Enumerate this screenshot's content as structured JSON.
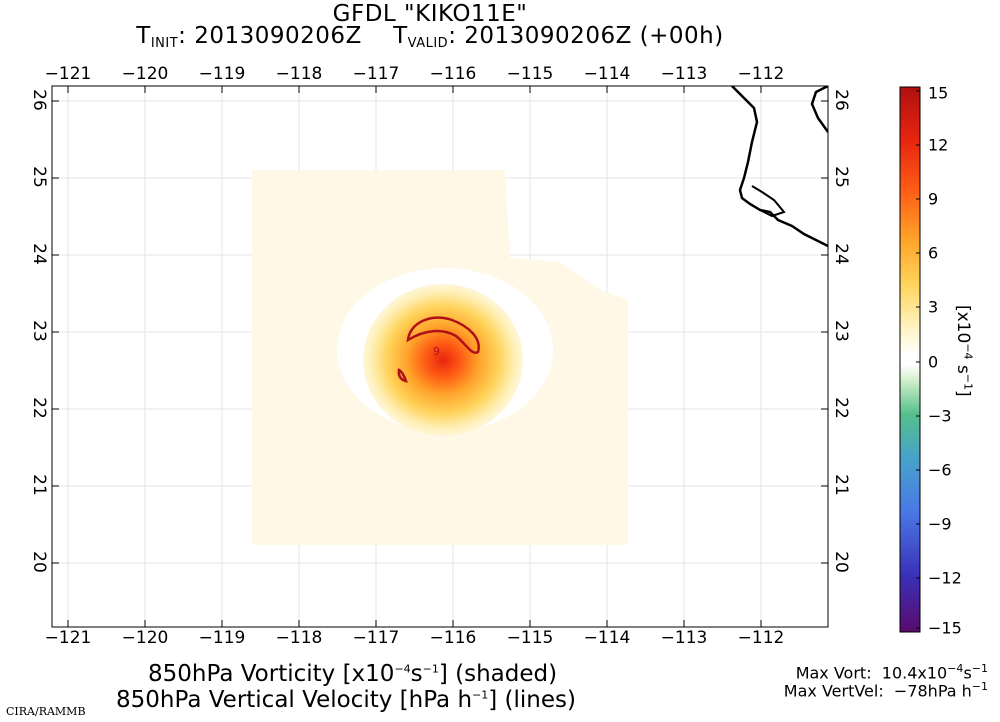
{
  "title": {
    "line1": "GFDL \"KIKO11E\"",
    "tinit_label": "T",
    "tinit_sub": "INIT",
    "tinit_value": ": 2013090206Z",
    "tvalid_label": "T",
    "tvalid_sub": "VALID",
    "tvalid_value": ": 2013090206Z (+00h)"
  },
  "map": {
    "lon_labels": [
      "−121",
      "−120",
      "−119",
      "−118",
      "−117",
      "−116",
      "−115",
      "−114",
      "−113",
      "−112"
    ],
    "lat_labels": [
      "26",
      "25",
      "24",
      "23",
      "22",
      "21",
      "20"
    ],
    "contour_label": "9",
    "colors": {
      "coast": "#000000",
      "contour": "#b0101a",
      "grid": "#e6e6e6"
    }
  },
  "colorbar": {
    "ticks": [
      "15",
      "12",
      "9",
      "6",
      "3",
      "0",
      "−3",
      "−6",
      "−9",
      "−12",
      "−15"
    ],
    "unit_prefix": "[x10",
    "unit_exp1": "−4",
    "unit_mid": " s",
    "unit_exp2": "−1",
    "unit_suffix": "]",
    "colors": [
      "#5b0a6e",
      "#3a2fb5",
      "#4a78e6",
      "#47a3c9",
      "#55c08c",
      "#bde6b7",
      "#ffffff",
      "#ffffff",
      "#fff6c7",
      "#ffd35a",
      "#ffa32a",
      "#ff6418",
      "#e8260f",
      "#b0100f"
    ]
  },
  "bottom": {
    "line1_a": "850hPa Vorticity [x10",
    "line1_exp1": "−4",
    "line1_b": "s",
    "line1_exp2": "−1",
    "line1_c": "] (shaded)",
    "line2_a": "850hPa Vertical Velocity [hPa h",
    "line2_exp": "−1",
    "line2_b": "] (lines)"
  },
  "stats": {
    "vort_label": "Max Vort:",
    "vort_value": "10.4x10",
    "vort_exp1": "−4",
    "vort_unit": "s",
    "vort_exp2": "−1",
    "vv_label": "Max VertVel:",
    "vv_value": "−78hPa h",
    "vv_exp": "−1"
  },
  "credit": "CIRA/RAMMB"
}
